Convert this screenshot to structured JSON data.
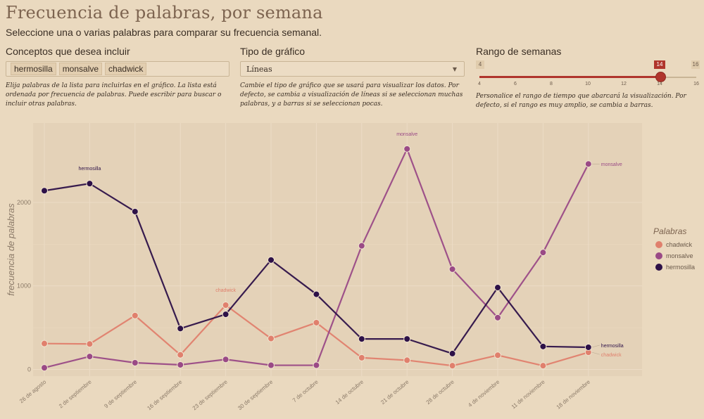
{
  "header": {
    "title": "Frecuencia de palabras, por semana",
    "subtitle": "Seleccione una o varias palabras para comparar su frecuencia semanal."
  },
  "concepts": {
    "label": "Conceptos que desea incluir",
    "chips": [
      "hermosilla",
      "monsalve",
      "chadwick"
    ],
    "help": "Elija palabras de la lista para incluirlas en el gráfico. La lista está ordenada por frecuencia de palabras. Puede escribir para buscar o incluir otras palabras."
  },
  "chart_type": {
    "label": "Tipo de gráfico",
    "selected": "Líneas",
    "help": "Cambie el tipo de gráfico que se usará para visualizar los datos. Por defecto, se cambia a visualización de líneas si se seleccionan muchas palabras, y a barras si se seleccionan pocas."
  },
  "week_range": {
    "label": "Rango de semanas",
    "min": 4,
    "max": 16,
    "value_from": 4,
    "value_to": 14,
    "ticks": [
      "4",
      "6",
      "8",
      "10",
      "12",
      "14",
      "16"
    ],
    "min_label": "4",
    "max_label": "16",
    "current_label": "14",
    "help": "Personalice el rango de tiempo que abarcará la visualización. Por defecto, si el rango es muy amplio, se cambia a barras."
  },
  "chart_data": {
    "type": "line",
    "title": "",
    "xlabel": "",
    "ylabel": "frecuencia de palabras",
    "ylim": [
      -80,
      2950
    ],
    "yticks": [
      0,
      1000,
      2000
    ],
    "categories": [
      "26 de agosto",
      "2 de septiembre",
      "9 de septiembre",
      "16 de septiembre",
      "23 de septiembre",
      "30 de septiembre",
      "7 de octubre",
      "14 de octubre",
      "21 de octubre",
      "28 de octubre",
      "4 de noviembre",
      "11 de noviembre",
      "18 de noviembre"
    ],
    "series": [
      {
        "name": "chadwick",
        "color": "#e0806d",
        "values": [
          310,
          305,
          645,
          175,
          770,
          370,
          560,
          140,
          110,
          45,
          170,
          45,
          205
        ]
      },
      {
        "name": "monsalve",
        "color": "#9a4a86",
        "values": [
          20,
          155,
          80,
          55,
          120,
          50,
          50,
          1480,
          2640,
          1200,
          620,
          1400,
          2460
        ]
      },
      {
        "name": "hermosilla",
        "color": "#2d1148",
        "values": [
          2140,
          2225,
          1890,
          490,
          660,
          1310,
          900,
          365,
          365,
          190,
          980,
          275,
          265
        ]
      }
    ],
    "annotations": [
      {
        "series": "hermosilla",
        "index": 1,
        "text": "hermosilla"
      },
      {
        "series": "chadwick",
        "index": 4,
        "text": "chadwick"
      },
      {
        "series": "monsalve",
        "index": 8,
        "text": "monsalve"
      },
      {
        "series": "monsalve",
        "index": 12,
        "text": "monsalve"
      },
      {
        "series": "hermosilla",
        "index": 12,
        "text": "hermosilla"
      },
      {
        "series": "chadwick",
        "index": 12,
        "text": "chadwick"
      }
    ],
    "legend": {
      "title": "Palabras",
      "position": "right"
    }
  }
}
